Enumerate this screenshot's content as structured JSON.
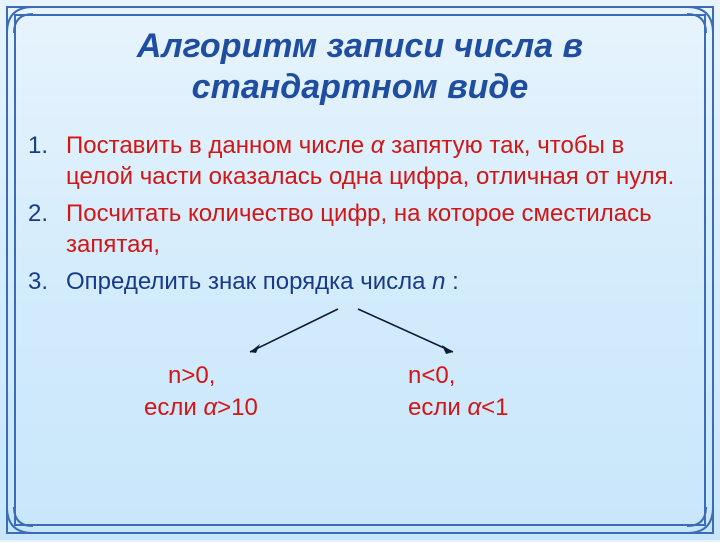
{
  "title": "Алгоритм записи числа в стандартном виде",
  "items": [
    {
      "num": "1.",
      "parts": [
        {
          "text": "Поставить в данном числе ",
          "cls": "red"
        },
        {
          "text": "α ",
          "cls": "red italic"
        },
        {
          "text": "запятую так, чтобы в целой части оказалась одна цифра, отличная от нуля.",
          "cls": "red"
        }
      ]
    },
    {
      "num": "2.",
      "parts": [
        {
          "text": "Посчитать количество цифр, на которое сместилась запятая,",
          "cls": "red"
        }
      ]
    },
    {
      "num": "3.",
      "parts": [
        {
          "text": "Определить знак порядка числа ",
          "cls": "blue"
        },
        {
          "text": "n",
          "cls": "blue italic"
        },
        {
          "text": " :",
          "cls": "blue"
        }
      ]
    }
  ],
  "branches": {
    "left_label": "n>0,",
    "right_label": "n<0,",
    "left_cond_prefix": "если ",
    "left_cond_alpha": "α",
    "left_cond_suffix": ">10",
    "right_cond_prefix": "если ",
    "right_cond_alpha": "α",
    "right_cond_suffix": "<1"
  },
  "colors": {
    "frame": "#3a6db5",
    "title": "#1f4ea1",
    "blue_text": "#173b8a",
    "red_text": "#d21616",
    "arrow": "#0f1a3a"
  }
}
